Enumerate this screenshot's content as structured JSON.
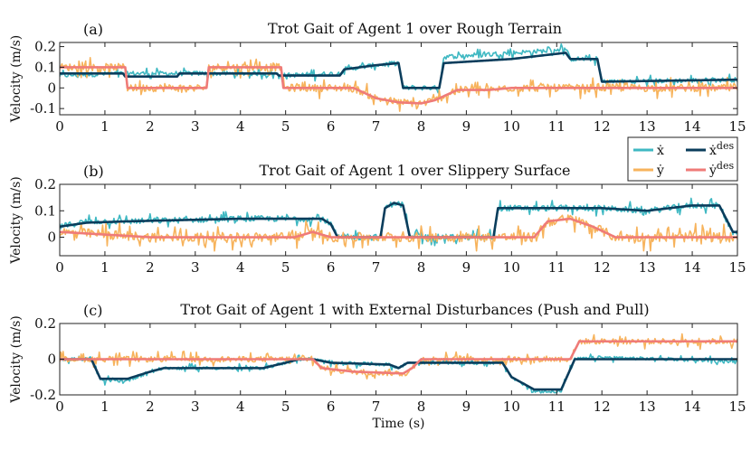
{
  "chart_data": [
    {
      "type": "line",
      "panel_label": "(a)",
      "title": "Trot Gait of Agent 1 over Rough Terrain",
      "ylabel": "Velocity (m/s)",
      "xlabel": "",
      "xlim": [
        0,
        15
      ],
      "ylim": [
        -0.13,
        0.22
      ],
      "xticks": [
        0,
        1,
        2,
        3,
        4,
        5,
        6,
        7,
        8,
        9,
        10,
        11,
        12,
        13,
        14,
        15
      ],
      "yticks": [
        -0.1,
        0,
        0.1,
        0.2
      ],
      "ytick_labels": [
        "-0.1",
        "0",
        "0.1",
        "0.2"
      ],
      "series": [
        {
          "name": "x_des",
          "color": "#0b3d5c",
          "noise": 0,
          "points": [
            [
              0,
              0.07
            ],
            [
              1.4,
              0.07
            ],
            [
              1.45,
              0.055
            ],
            [
              2.6,
              0.055
            ],
            [
              2.65,
              0.07
            ],
            [
              4.8,
              0.07
            ],
            [
              4.85,
              0.06
            ],
            [
              6.2,
              0.06
            ],
            [
              6.3,
              0.09
            ],
            [
              7.0,
              0.11
            ],
            [
              7.5,
              0.12
            ],
            [
              7.6,
              0.0
            ],
            [
              8.4,
              0.0
            ],
            [
              8.5,
              0.12
            ],
            [
              10.0,
              0.14
            ],
            [
              10.8,
              0.16
            ],
            [
              11.2,
              0.17
            ],
            [
              11.3,
              0.14
            ],
            [
              11.9,
              0.14
            ],
            [
              12.0,
              0.03
            ],
            [
              15,
              0.04
            ]
          ]
        },
        {
          "name": "x",
          "color": "#3fb8c2",
          "noise": 0.025,
          "points": [
            [
              0,
              0.06
            ],
            [
              1.4,
              0.07
            ],
            [
              1.45,
              0.07
            ],
            [
              2.6,
              0.07
            ],
            [
              2.65,
              0.07
            ],
            [
              4.8,
              0.07
            ],
            [
              4.85,
              0.06
            ],
            [
              6.2,
              0.07
            ],
            [
              6.3,
              0.09
            ],
            [
              7.0,
              0.11
            ],
            [
              7.5,
              0.12
            ],
            [
              7.6,
              0.0
            ],
            [
              8.4,
              0.0
            ],
            [
              8.5,
              0.15
            ],
            [
              10.0,
              0.17
            ],
            [
              10.8,
              0.18
            ],
            [
              11.2,
              0.19
            ],
            [
              11.3,
              0.14
            ],
            [
              11.9,
              0.14
            ],
            [
              12.0,
              0.03
            ],
            [
              15,
              0.04
            ]
          ]
        },
        {
          "name": "y_des",
          "color": "#ef7b78",
          "noise": 0,
          "points": [
            [
              0,
              0.1
            ],
            [
              1.45,
              0.1
            ],
            [
              1.5,
              0.0
            ],
            [
              3.25,
              0.0
            ],
            [
              3.3,
              0.1
            ],
            [
              4.9,
              0.1
            ],
            [
              4.95,
              0.0
            ],
            [
              6.5,
              0.0
            ],
            [
              7.0,
              -0.05
            ],
            [
              7.5,
              -0.07
            ],
            [
              8.0,
              -0.075
            ],
            [
              8.3,
              -0.06
            ],
            [
              8.8,
              -0.01
            ],
            [
              9.5,
              -0.01
            ],
            [
              10.0,
              0.0
            ],
            [
              15,
              0.0
            ]
          ]
        },
        {
          "name": "y",
          "color": "#f7b35c",
          "noise": 0.04,
          "points": [
            [
              0,
              0.1
            ],
            [
              1.45,
              0.1
            ],
            [
              1.5,
              0.0
            ],
            [
              3.25,
              0.0
            ],
            [
              3.3,
              0.1
            ],
            [
              4.9,
              0.1
            ],
            [
              4.95,
              0.0
            ],
            [
              6.5,
              0.0
            ],
            [
              7.0,
              -0.05
            ],
            [
              7.5,
              -0.07
            ],
            [
              8.0,
              -0.075
            ],
            [
              8.3,
              -0.06
            ],
            [
              8.8,
              -0.01
            ],
            [
              9.5,
              -0.01
            ],
            [
              10.0,
              0.0
            ],
            [
              15,
              0.0
            ]
          ]
        }
      ]
    },
    {
      "type": "line",
      "panel_label": "(b)",
      "title": "Trot Gait of Agent 1 over Slippery Surface",
      "ylabel": "Velocity (m/s)",
      "xlabel": "",
      "xlim": [
        0,
        15
      ],
      "ylim": [
        -0.07,
        0.2
      ],
      "xticks": [
        0,
        1,
        2,
        3,
        4,
        5,
        6,
        7,
        8,
        9,
        10,
        11,
        12,
        13,
        14,
        15
      ],
      "yticks": [
        0,
        0.1,
        0.2
      ],
      "ytick_labels": [
        "0",
        "0.1",
        "0.2"
      ],
      "series": [
        {
          "name": "x_des",
          "color": "#0b3d5c",
          "noise": 0,
          "points": [
            [
              0,
              0.04
            ],
            [
              0.6,
              0.055
            ],
            [
              1.5,
              0.06
            ],
            [
              4.0,
              0.07
            ],
            [
              5.8,
              0.07
            ],
            [
              6.0,
              0.05
            ],
            [
              6.15,
              0.0
            ],
            [
              7.1,
              0.0
            ],
            [
              7.2,
              0.11
            ],
            [
              7.4,
              0.13
            ],
            [
              7.6,
              0.12
            ],
            [
              7.75,
              0.0
            ],
            [
              9.6,
              0.0
            ],
            [
              9.7,
              0.11
            ],
            [
              12.0,
              0.11
            ],
            [
              13.0,
              0.1
            ],
            [
              14.0,
              0.12
            ],
            [
              14.6,
              0.12
            ],
            [
              14.9,
              0.02
            ],
            [
              15,
              0.02
            ]
          ]
        },
        {
          "name": "x",
          "color": "#3fb8c2",
          "noise": 0.025,
          "points": [
            [
              0,
              0.04
            ],
            [
              0.6,
              0.06
            ],
            [
              1.5,
              0.06
            ],
            [
              4.0,
              0.07
            ],
            [
              5.8,
              0.07
            ],
            [
              6.0,
              0.05
            ],
            [
              6.15,
              0.0
            ],
            [
              7.1,
              0.0
            ],
            [
              7.2,
              0.11
            ],
            [
              7.4,
              0.13
            ],
            [
              7.6,
              0.12
            ],
            [
              7.75,
              0.0
            ],
            [
              9.6,
              0.0
            ],
            [
              9.7,
              0.11
            ],
            [
              12.0,
              0.11
            ],
            [
              13.0,
              0.1
            ],
            [
              14.0,
              0.12
            ],
            [
              14.6,
              0.12
            ],
            [
              14.9,
              0.02
            ],
            [
              15,
              0.02
            ]
          ]
        },
        {
          "name": "y_des",
          "color": "#ef7b78",
          "noise": 0,
          "points": [
            [
              0,
              0.02
            ],
            [
              1.0,
              0.01
            ],
            [
              2.0,
              0.0
            ],
            [
              5.2,
              0.0
            ],
            [
              5.6,
              0.02
            ],
            [
              6.0,
              0.0
            ],
            [
              10.5,
              0.0
            ],
            [
              10.8,
              0.06
            ],
            [
              11.3,
              0.07
            ],
            [
              11.8,
              0.04
            ],
            [
              12.3,
              0.0
            ],
            [
              15,
              0.0
            ]
          ]
        },
        {
          "name": "y",
          "color": "#f7b35c",
          "noise": 0.04,
          "points": [
            [
              0,
              0.02
            ],
            [
              1.0,
              0.01
            ],
            [
              2.0,
              0.0
            ],
            [
              5.2,
              0.0
            ],
            [
              5.6,
              0.02
            ],
            [
              6.0,
              0.0
            ],
            [
              10.5,
              0.0
            ],
            [
              10.8,
              0.06
            ],
            [
              11.3,
              0.07
            ],
            [
              11.8,
              0.04
            ],
            [
              12.3,
              0.0
            ],
            [
              15,
              0.0
            ]
          ]
        }
      ]
    },
    {
      "type": "line",
      "panel_label": "(c)",
      "title": "Trot Gait of Agent 1 with External Disturbances (Push and Pull)",
      "ylabel": "Velocity (m/s)",
      "xlabel": "Time (s)",
      "xlim": [
        0,
        15
      ],
      "ylim": [
        -0.2,
        0.2
      ],
      "xticks": [
        0,
        1,
        2,
        3,
        4,
        5,
        6,
        7,
        8,
        9,
        10,
        11,
        12,
        13,
        14,
        15
      ],
      "yticks": [
        -0.2,
        0,
        0.2
      ],
      "ytick_labels": [
        "-0.2",
        "0",
        "0.2"
      ],
      "series": [
        {
          "name": "x_des",
          "color": "#0b3d5c",
          "noise": 0,
          "points": [
            [
              0,
              0.0
            ],
            [
              0.7,
              0.0
            ],
            [
              0.9,
              -0.11
            ],
            [
              1.5,
              -0.11
            ],
            [
              2.0,
              -0.07
            ],
            [
              2.3,
              -0.05
            ],
            [
              4.5,
              -0.05
            ],
            [
              5.0,
              -0.02
            ],
            [
              5.3,
              0.0
            ],
            [
              5.6,
              0.0
            ],
            [
              6.0,
              -0.02
            ],
            [
              7.3,
              -0.03
            ],
            [
              7.5,
              -0.05
            ],
            [
              7.7,
              -0.02
            ],
            [
              9.8,
              -0.02
            ],
            [
              10.0,
              -0.1
            ],
            [
              10.5,
              -0.17
            ],
            [
              11.1,
              -0.17
            ],
            [
              11.4,
              0.0
            ],
            [
              15,
              0.0
            ]
          ]
        },
        {
          "name": "x",
          "color": "#3fb8c2",
          "noise": 0.02,
          "points": [
            [
              0,
              0.0
            ],
            [
              0.7,
              0.0
            ],
            [
              0.9,
              -0.12
            ],
            [
              1.5,
              -0.12
            ],
            [
              2.0,
              -0.07
            ],
            [
              2.3,
              -0.05
            ],
            [
              4.5,
              -0.05
            ],
            [
              5.0,
              -0.02
            ],
            [
              5.3,
              0.0
            ],
            [
              5.6,
              0.0
            ],
            [
              6.0,
              -0.02
            ],
            [
              7.3,
              -0.03
            ],
            [
              7.5,
              -0.05
            ],
            [
              7.7,
              -0.02
            ],
            [
              9.8,
              -0.02
            ],
            [
              10.0,
              -0.1
            ],
            [
              10.5,
              -0.18
            ],
            [
              11.1,
              -0.18
            ],
            [
              11.4,
              0.0
            ],
            [
              12.0,
              0.01
            ],
            [
              15,
              -0.01
            ]
          ]
        },
        {
          "name": "y_des",
          "color": "#ef7b78",
          "noise": 0,
          "points": [
            [
              0,
              0.0
            ],
            [
              5.6,
              0.0
            ],
            [
              5.8,
              -0.05
            ],
            [
              6.5,
              -0.07
            ],
            [
              7.6,
              -0.08
            ],
            [
              7.8,
              -0.05
            ],
            [
              8.0,
              0.0
            ],
            [
              11.3,
              0.0
            ],
            [
              11.5,
              0.1
            ],
            [
              15,
              0.1
            ]
          ]
        },
        {
          "name": "y",
          "color": "#f7b35c",
          "noise": 0.035,
          "points": [
            [
              0,
              0.0
            ],
            [
              5.6,
              0.0
            ],
            [
              5.8,
              -0.05
            ],
            [
              6.5,
              -0.07
            ],
            [
              7.6,
              -0.08
            ],
            [
              7.8,
              -0.05
            ],
            [
              8.0,
              0.0
            ],
            [
              11.3,
              0.0
            ],
            [
              11.5,
              0.1
            ],
            [
              15,
              0.1
            ]
          ]
        }
      ]
    }
  ],
  "legend": {
    "placement": "right, between panels (a) and (b)",
    "entries": [
      {
        "label": "ẋ",
        "sup": "",
        "color": "#3fb8c2"
      },
      {
        "label": "ẋ",
        "sup": "des",
        "color": "#0b3d5c"
      },
      {
        "label": "ẏ",
        "sup": "",
        "color": "#f7b35c"
      },
      {
        "label": "ẏ",
        "sup": "des",
        "color": "#ef7b78"
      }
    ]
  }
}
